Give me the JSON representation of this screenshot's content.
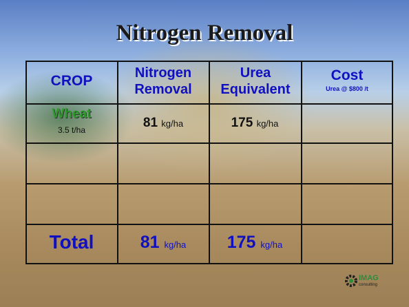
{
  "header": {
    "title": "Nitrogen Removal"
  },
  "table": {
    "columns": [
      {
        "label": "CROP"
      },
      {
        "label": "Nitrogen Removal"
      },
      {
        "label": "Urea Equivalent"
      },
      {
        "label": "Cost",
        "note": "Urea @ $800 /t"
      }
    ],
    "rows": [
      {
        "crop": "Wheat",
        "yield": "3.5 t/ha",
        "nitrogen": 81,
        "nitrogen_unit": "kg/ha",
        "urea": 175,
        "urea_unit": "kg/ha"
      }
    ],
    "total": {
      "label": "Total",
      "nitrogen": 81,
      "nitrogen_unit": "kg/ha",
      "urea": 175,
      "urea_unit": "kg/ha"
    }
  },
  "logo": {
    "name": "IMAG",
    "tagline": "consulting"
  }
}
